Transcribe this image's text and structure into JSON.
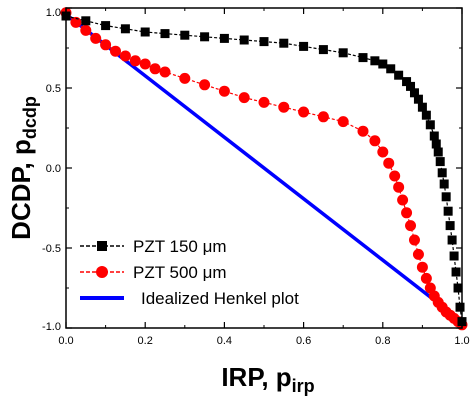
{
  "chart_data": {
    "type": "line",
    "xlabel": "IRP, p",
    "xlabel_sub": "irp",
    "ylabel": "DCDP, p",
    "ylabel_sub": "dcdp",
    "xlim": [
      0.0,
      1.0
    ],
    "ylim": [
      -1.0,
      1.0
    ],
    "x_ticks": [
      0.0,
      0.2,
      0.4,
      0.6,
      0.8,
      1.0
    ],
    "x_tick_labels": [
      "0.0",
      "0.2",
      "0.4",
      "0.6",
      "0.8",
      "1.0"
    ],
    "y_ticks": [
      -1.0,
      -0.5,
      0.0,
      0.5,
      1.0
    ],
    "y_tick_labels": [
      "-1.0",
      "-0.5",
      "0.0",
      "0.5",
      "1.0"
    ],
    "grid": false,
    "legend_position": "bottom-left",
    "series": [
      {
        "name": "PZT 150 μm",
        "color": "#000000",
        "marker": "square",
        "x": [
          0.0,
          0.05,
          0.1,
          0.15,
          0.2,
          0.25,
          0.3,
          0.35,
          0.4,
          0.45,
          0.5,
          0.55,
          0.6,
          0.65,
          0.7,
          0.75,
          0.78,
          0.8,
          0.82,
          0.84,
          0.86,
          0.87,
          0.88,
          0.89,
          0.9,
          0.91,
          0.92,
          0.93,
          0.935,
          0.94,
          0.945,
          0.95,
          0.955,
          0.96,
          0.965,
          0.97,
          0.975,
          0.98,
          0.985,
          0.99,
          0.995,
          1.0
        ],
        "y": [
          0.95,
          0.92,
          0.89,
          0.87,
          0.85,
          0.84,
          0.83,
          0.82,
          0.81,
          0.8,
          0.79,
          0.78,
          0.76,
          0.74,
          0.72,
          0.69,
          0.67,
          0.65,
          0.62,
          0.58,
          0.54,
          0.51,
          0.47,
          0.43,
          0.38,
          0.33,
          0.27,
          0.2,
          0.15,
          0.1,
          0.04,
          -0.03,
          -0.1,
          -0.18,
          -0.27,
          -0.36,
          -0.45,
          -0.55,
          -0.65,
          -0.75,
          -0.87,
          -0.96
        ]
      },
      {
        "name": "PZT 500 μm",
        "color": "#ff0000",
        "marker": "circle",
        "x": [
          0.0,
          0.025,
          0.05,
          0.075,
          0.1,
          0.125,
          0.15,
          0.175,
          0.2,
          0.225,
          0.25,
          0.3,
          0.35,
          0.4,
          0.45,
          0.5,
          0.55,
          0.6,
          0.65,
          0.7,
          0.75,
          0.78,
          0.8,
          0.815,
          0.83,
          0.84,
          0.85,
          0.86,
          0.87,
          0.88,
          0.89,
          0.9,
          0.91,
          0.92,
          0.93,
          0.94,
          0.95,
          0.96,
          0.97,
          0.98,
          0.99,
          1.0
        ],
        "y": [
          0.97,
          0.91,
          0.86,
          0.81,
          0.77,
          0.73,
          0.7,
          0.67,
          0.65,
          0.62,
          0.6,
          0.56,
          0.52,
          0.48,
          0.44,
          0.41,
          0.38,
          0.35,
          0.32,
          0.29,
          0.23,
          0.17,
          0.1,
          0.03,
          -0.05,
          -0.12,
          -0.2,
          -0.28,
          -0.36,
          -0.45,
          -0.54,
          -0.62,
          -0.69,
          -0.75,
          -0.8,
          -0.84,
          -0.87,
          -0.9,
          -0.92,
          -0.94,
          -0.96,
          -0.98
        ]
      },
      {
        "name": "Idealized Henkel plot",
        "color": "#0000ff",
        "marker": "none",
        "x": [
          0.0,
          1.0
        ],
        "y": [
          0.96,
          -0.96
        ]
      }
    ]
  }
}
